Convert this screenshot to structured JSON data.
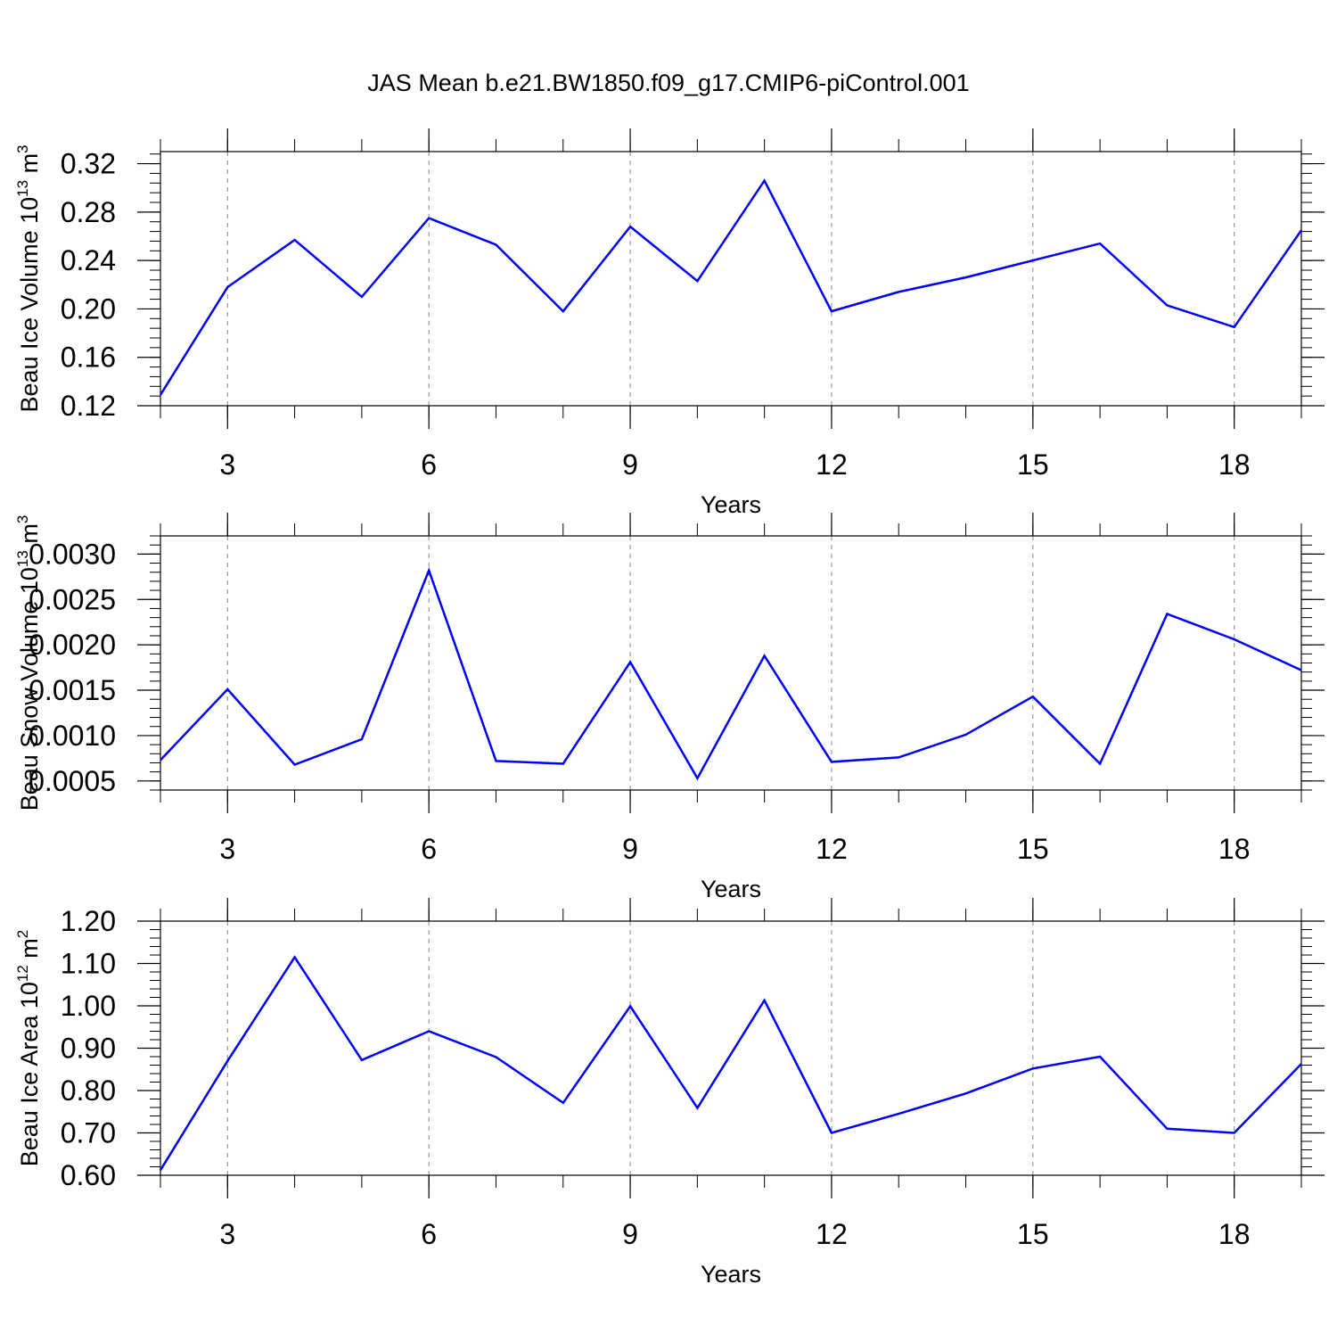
{
  "title": "JAS Mean b.e21.BW1850.f09_g17.CMIP6-piControl.001",
  "colors": {
    "line": "#0000ff",
    "axis": "#000000",
    "grid": "#888888"
  },
  "chart_data": [
    {
      "type": "line",
      "xlabel": "Years",
      "ylabel_main": "Beau Ice Volume 10",
      "ylabel_exp": "13",
      "ylabel_unit": " m",
      "ylabel_unit_exp": "3",
      "xlim": [
        2,
        19
      ],
      "ylim": [
        0.12,
        0.33
      ],
      "xticks": [
        3,
        6,
        9,
        12,
        15,
        18
      ],
      "yticks": [
        0.12,
        0.16,
        0.2,
        0.24,
        0.28,
        0.32
      ],
      "ytick_labels": [
        "0.12",
        "0.16",
        "0.20",
        "0.24",
        "0.28",
        "0.32"
      ],
      "x": [
        2,
        3,
        4,
        5,
        6,
        7,
        8,
        9,
        10,
        11,
        12,
        13,
        14,
        15,
        16,
        17,
        18,
        19
      ],
      "y": [
        0.129,
        0.218,
        0.257,
        0.21,
        0.275,
        0.253,
        0.198,
        0.268,
        0.223,
        0.306,
        0.198,
        0.214,
        0.226,
        0.24,
        0.254,
        0.203,
        0.185,
        0.265
      ]
    },
    {
      "type": "line",
      "xlabel": "Years",
      "ylabel_main": "Beau Snow Volume 10",
      "ylabel_exp": "13",
      "ylabel_unit": " m",
      "ylabel_unit_exp": "3",
      "xlim": [
        2,
        19
      ],
      "ylim": [
        0.0004,
        0.0032
      ],
      "xticks": [
        3,
        6,
        9,
        12,
        15,
        18
      ],
      "yticks": [
        0.0005,
        0.001,
        0.0015,
        0.002,
        0.0025,
        0.003
      ],
      "ytick_labels": [
        "0.0005",
        "0.0010",
        "0.0015",
        "0.0020",
        "0.0025",
        "0.0030"
      ],
      "x": [
        2,
        3,
        4,
        5,
        6,
        7,
        8,
        9,
        10,
        11,
        12,
        13,
        14,
        15,
        16,
        17,
        18,
        19
      ],
      "y": [
        0.00073,
        0.00151,
        0.00068,
        0.00096,
        0.00282,
        0.00072,
        0.00069,
        0.00181,
        0.00053,
        0.00188,
        0.00071,
        0.00076,
        0.00101,
        0.00143,
        0.00069,
        0.00234,
        0.00206,
        0.00172
      ]
    },
    {
      "type": "line",
      "xlabel": "Years",
      "ylabel_main": "Beau Ice Area 10",
      "ylabel_exp": "12",
      "ylabel_unit": " m",
      "ylabel_unit_exp": "2",
      "xlim": [
        2,
        19
      ],
      "ylim": [
        0.6,
        1.2
      ],
      "xticks": [
        3,
        6,
        9,
        12,
        15,
        18
      ],
      "yticks": [
        0.6,
        0.7,
        0.8,
        0.9,
        1.0,
        1.1,
        1.2
      ],
      "ytick_labels": [
        "0.60",
        "0.70",
        "0.80",
        "0.90",
        "1.00",
        "1.10",
        "1.20"
      ],
      "x": [
        2,
        3,
        4,
        5,
        6,
        7,
        8,
        9,
        10,
        11,
        12,
        13,
        14,
        15,
        16,
        17,
        18,
        19
      ],
      "y": [
        0.612,
        0.87,
        1.115,
        0.872,
        0.94,
        0.879,
        0.771,
        0.999,
        0.759,
        1.013,
        0.7,
        0.745,
        0.793,
        0.852,
        0.88,
        0.71,
        0.7,
        0.863
      ]
    }
  ]
}
